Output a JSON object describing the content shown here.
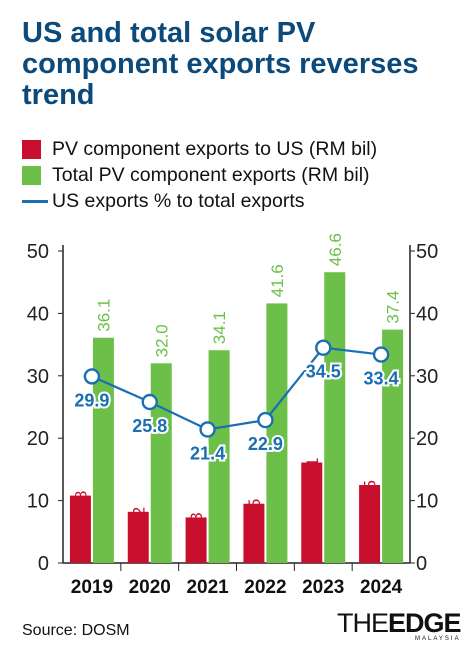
{
  "title": "US and total solar PV component exports reverses trend",
  "legend": [
    {
      "label": "PV component exports to US (RM bil)",
      "color": "#c8102e",
      "kind": "bar"
    },
    {
      "label": "Total PV component exports (RM bil)",
      "color": "#6cc04a",
      "kind": "bar"
    },
    {
      "label": "US exports % to total exports",
      "color": "#1a6fb3",
      "kind": "line"
    }
  ],
  "chart_data": {
    "type": "bar",
    "categories": [
      "2019",
      "2020",
      "2021",
      "2022",
      "2023",
      "2024"
    ],
    "series": [
      {
        "name": "PV component exports to US (RM bil)",
        "type": "bar",
        "color": "#c8102e",
        "values": [
          10.8,
          8.2,
          7.3,
          9.5,
          16.1,
          12.5
        ],
        "labels": [
          "10.8",
          "8.2",
          "7.3",
          "9.5",
          "16.1",
          "12.5"
        ]
      },
      {
        "name": "Total PV component exports (RM bil)",
        "type": "bar",
        "color": "#6cc04a",
        "values": [
          36.1,
          32.0,
          34.1,
          41.6,
          46.6,
          37.4
        ],
        "labels": [
          "36.1",
          "32.0",
          "34.1",
          "41.6",
          "46.6",
          "37.4"
        ]
      },
      {
        "name": "US exports % to total exports",
        "type": "line",
        "color": "#1a6fb3",
        "values": [
          29.9,
          25.8,
          21.4,
          22.9,
          34.5,
          33.4
        ],
        "labels": [
          "29.9",
          "25.8",
          "21.4",
          "22.9",
          "34.5",
          "33.4"
        ]
      }
    ],
    "ylim": [
      0,
      50
    ],
    "y_ticks": [
      "0",
      "10",
      "20",
      "30",
      "40",
      "50"
    ],
    "y_axis_sides": "left and right",
    "grid": false
  },
  "source": "Source: DOSM",
  "logo": {
    "part1": "THE",
    "part2": "EDGE",
    "sub": "MALAYSIA"
  }
}
